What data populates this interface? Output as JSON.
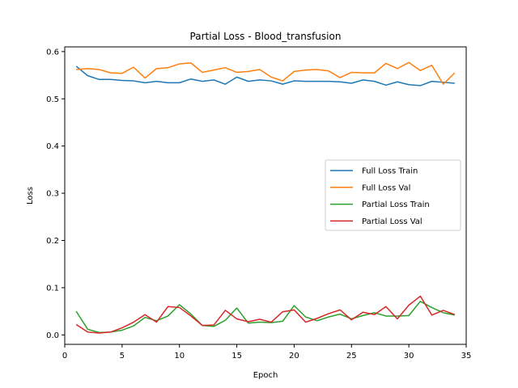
{
  "chart_data": {
    "type": "line",
    "title": "Partial Loss - Blood_transfusion",
    "xlabel": "Epoch",
    "ylabel": "Loss",
    "xlim": [
      0,
      35
    ],
    "ylim": [
      -0.02,
      0.61
    ],
    "xticks": [
      0,
      5,
      10,
      15,
      20,
      25,
      30,
      35
    ],
    "yticks": [
      0.0,
      0.1,
      0.2,
      0.3,
      0.4,
      0.5,
      0.6
    ],
    "xtick_labels": [
      "0",
      "5",
      "10",
      "15",
      "20",
      "25",
      "30",
      "35"
    ],
    "ytick_labels": [
      "0.0",
      "0.1",
      "0.2",
      "0.3",
      "0.4",
      "0.5",
      "0.6"
    ],
    "grid": false,
    "legend_position": "center-right",
    "x": [
      1,
      2,
      3,
      4,
      5,
      6,
      7,
      8,
      9,
      10,
      11,
      12,
      13,
      14,
      15,
      16,
      17,
      18,
      19,
      20,
      21,
      22,
      23,
      24,
      25,
      26,
      27,
      28,
      29,
      30,
      31,
      32,
      33,
      34
    ],
    "series": [
      {
        "name": "Full Loss Train",
        "color": "#1f77b4",
        "values": [
          0.569,
          0.549,
          0.541,
          0.541,
          0.539,
          0.538,
          0.534,
          0.537,
          0.534,
          0.534,
          0.542,
          0.537,
          0.54,
          0.531,
          0.546,
          0.537,
          0.54,
          0.538,
          0.531,
          0.538,
          0.537,
          0.537,
          0.537,
          0.536,
          0.533,
          0.54,
          0.537,
          0.529,
          0.536,
          0.53,
          0.528,
          0.537,
          0.535,
          0.533
        ]
      },
      {
        "name": "Full Loss Val",
        "color": "#ff7f0e",
        "values": [
          0.562,
          0.564,
          0.562,
          0.555,
          0.554,
          0.567,
          0.544,
          0.564,
          0.566,
          0.574,
          0.576,
          0.556,
          0.561,
          0.566,
          0.556,
          0.558,
          0.562,
          0.546,
          0.538,
          0.558,
          0.561,
          0.562,
          0.559,
          0.545,
          0.556,
          0.555,
          0.555,
          0.575,
          0.564,
          0.577,
          0.56,
          0.571,
          0.531,
          0.555
        ]
      },
      {
        "name": "Partial Loss Train",
        "color": "#2ca02c",
        "values": [
          0.05,
          0.012,
          0.005,
          0.006,
          0.01,
          0.019,
          0.037,
          0.03,
          0.04,
          0.064,
          0.044,
          0.02,
          0.018,
          0.031,
          0.057,
          0.025,
          0.027,
          0.026,
          0.029,
          0.062,
          0.038,
          0.03,
          0.038,
          0.044,
          0.034,
          0.041,
          0.047,
          0.04,
          0.04,
          0.041,
          0.071,
          0.058,
          0.047,
          0.042
        ]
      },
      {
        "name": "Partial Loss Val",
        "color": "#d62728",
        "values": [
          0.022,
          0.006,
          0.004,
          0.006,
          0.015,
          0.027,
          0.043,
          0.027,
          0.06,
          0.058,
          0.04,
          0.02,
          0.021,
          0.052,
          0.034,
          0.028,
          0.033,
          0.027,
          0.049,
          0.053,
          0.027,
          0.035,
          0.045,
          0.053,
          0.032,
          0.048,
          0.043,
          0.06,
          0.034,
          0.063,
          0.082,
          0.042,
          0.052,
          0.043
        ]
      }
    ]
  }
}
